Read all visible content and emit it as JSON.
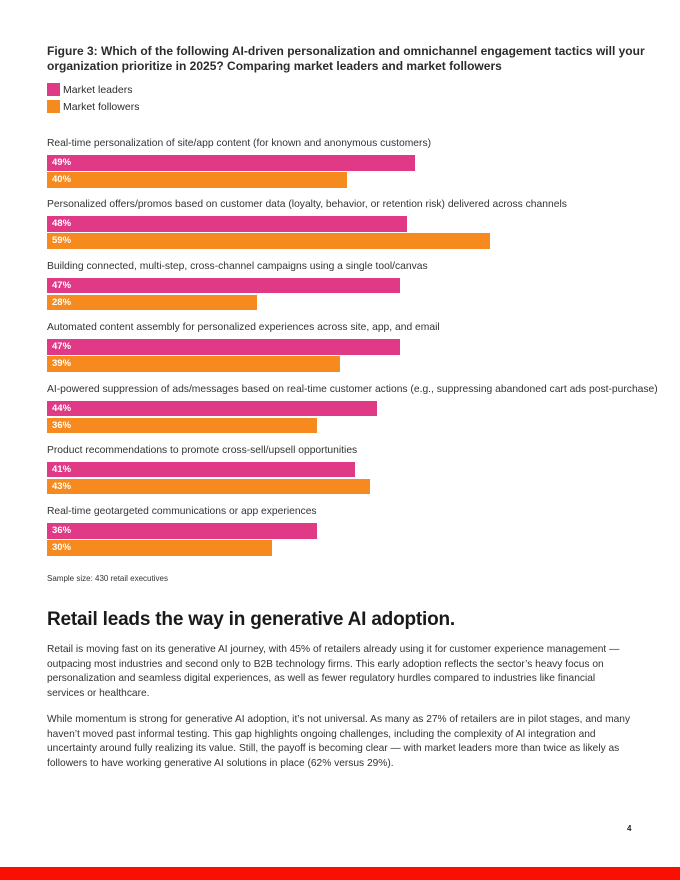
{
  "chart_data": {
    "type": "bar",
    "orientation": "horizontal",
    "title": "Figure 3: Which of the following AI-driven personalization and omnichannel engagement tactics will your organization prioritize in 2025? Comparing market leaders and market followers",
    "categories": [
      "Real-time personalization of site/app content (for known and anonymous customers)",
      "Personalized offers/promos based on customer data (loyalty, behavior, or retention risk) delivered across channels",
      "Building connected, multi-step, cross-channel campaigns using a single tool/canvas",
      "Automated content assembly for personalized experiences across site, app, and email",
      "AI-powered suppression of ads/messages based on real-time customer actions (e.g., suppressing abandoned cart ads post-purchase)",
      "Product recommendations to promote cross-sell/upsell opportunities",
      "Real-time geotargeted communications or app experiences"
    ],
    "series": [
      {
        "name": "Market leaders",
        "color": "#e03a86",
        "values": [
          49,
          48,
          47,
          47,
          44,
          41,
          36
        ]
      },
      {
        "name": "Market followers",
        "color": "#f68a1e",
        "values": [
          40,
          59,
          28,
          39,
          36,
          43,
          30
        ]
      }
    ],
    "value_suffix": "%",
    "xlim": [
      0,
      80
    ],
    "note": "Sample size: 430 retail executives"
  },
  "article": {
    "heading": "Retail leads the way in generative AI adoption.",
    "paragraph1": "Retail is moving fast on its generative AI journey, with 45% of retailers already using it for customer experience management — outpacing most industries and second only to B2B technology firms. This early adoption reflects the sector’s heavy focus on personalization and seamless digital experiences, as well as fewer regulatory hurdles compared to industries like financial services or healthcare.",
    "paragraph2": "While momentum is strong for generative AI adoption, it’s not universal. As many as 27% of retailers are in pilot stages, and many haven’t moved past informal testing. This gap highlights ongoing challenges, including the complexity of AI integration and uncertainty around fully realizing its value. Still, the payoff is becoming clear — with market leaders more than twice as likely as followers to have working generative AI solutions in place (62% versus 29%)."
  },
  "page_number": "4",
  "colors": {
    "footer": "#fa0f00"
  }
}
